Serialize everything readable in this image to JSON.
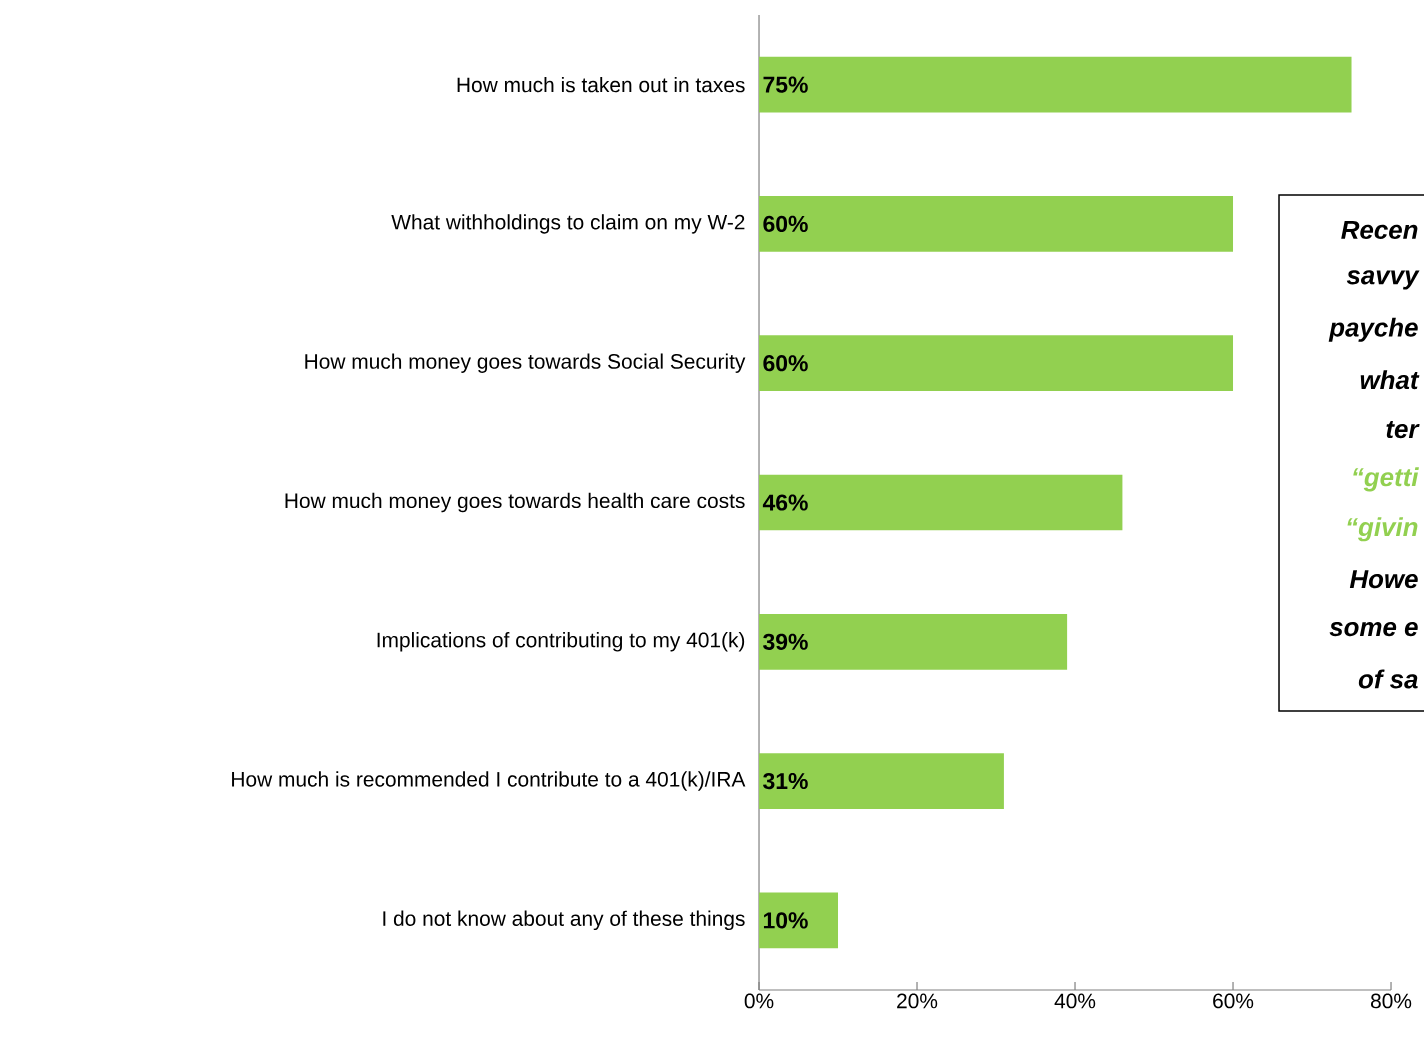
{
  "chart_data": {
    "type": "bar",
    "orientation": "horizontal",
    "categories": [
      "How much is taken out in taxes",
      "What withholdings to claim on my W-2",
      "How much money goes towards Social Security",
      "How much money goes towards health care costs",
      "Implications of contributing to my 401(k)",
      "How much is recommended I contribute to a 401(k)/IRA",
      "I do not know about any of these things"
    ],
    "values": [
      75,
      60,
      60,
      46,
      39,
      31,
      10
    ],
    "value_labels": [
      "75%",
      "60%",
      "60%",
      "46%",
      "39%",
      "31%",
      "10%"
    ],
    "color": "#92d050",
    "xlim": [
      0,
      80
    ],
    "xticks": [
      {
        "value": 0,
        "label": "0%"
      },
      {
        "value": 20,
        "label": "20%"
      },
      {
        "value": 40,
        "label": "40%"
      },
      {
        "value": 60,
        "label": "60%"
      },
      {
        "value": 80,
        "label": "80%"
      }
    ],
    "grid": false,
    "annotations": [
      "Recen",
      "savvy",
      "payche",
      "what",
      "ter",
      "“getti",
      "“givin",
      "Howe",
      "some e",
      "of sa"
    ]
  }
}
